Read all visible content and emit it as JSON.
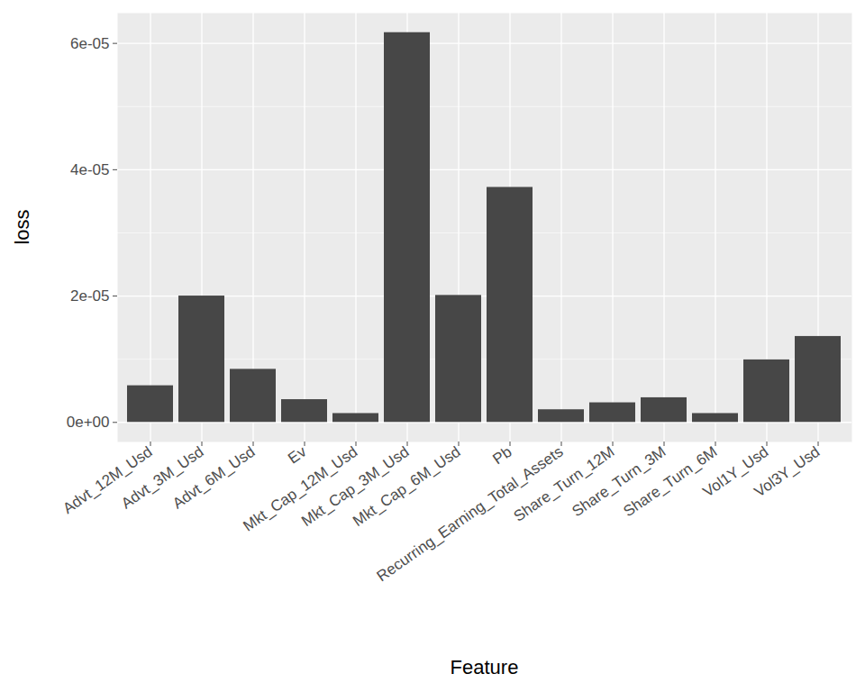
{
  "chart_data": {
    "type": "bar",
    "x_label": "Feature",
    "y_label": "loss",
    "categories": [
      "Advt_12M_Usd",
      "Advt_3M_Usd",
      "Advt_6M_Usd",
      "Ev",
      "Mkt_Cap_12M_Usd",
      "Mkt_Cap_3M_Usd",
      "Mkt_Cap_6M_Usd",
      "Pb",
      "Recurring_Earning_Total_Assets",
      "Share_Turn_12M",
      "Share_Turn_3M",
      "Share_Turn_6M",
      "Vol1Y_Usd",
      "Vol3Y_Usd"
    ],
    "values": [
      5.8e-06,
      2e-05,
      8.4e-06,
      3.6e-06,
      1.4e-06,
      6.17e-05,
      2.01e-05,
      3.72e-05,
      2e-06,
      3.1e-06,
      3.9e-06,
      1.4e-06,
      9.9e-06,
      1.36e-05
    ],
    "color": "#474747",
    "ylim": [
      -3.1e-06,
      6.48e-05
    ],
    "yticks": [
      {
        "value": 0,
        "label": "0e+00"
      },
      {
        "value": 2e-05,
        "label": "2e-05"
      },
      {
        "value": 4e-05,
        "label": "4e-05"
      },
      {
        "value": 6e-05,
        "label": "6e-05"
      }
    ],
    "grid": true
  }
}
